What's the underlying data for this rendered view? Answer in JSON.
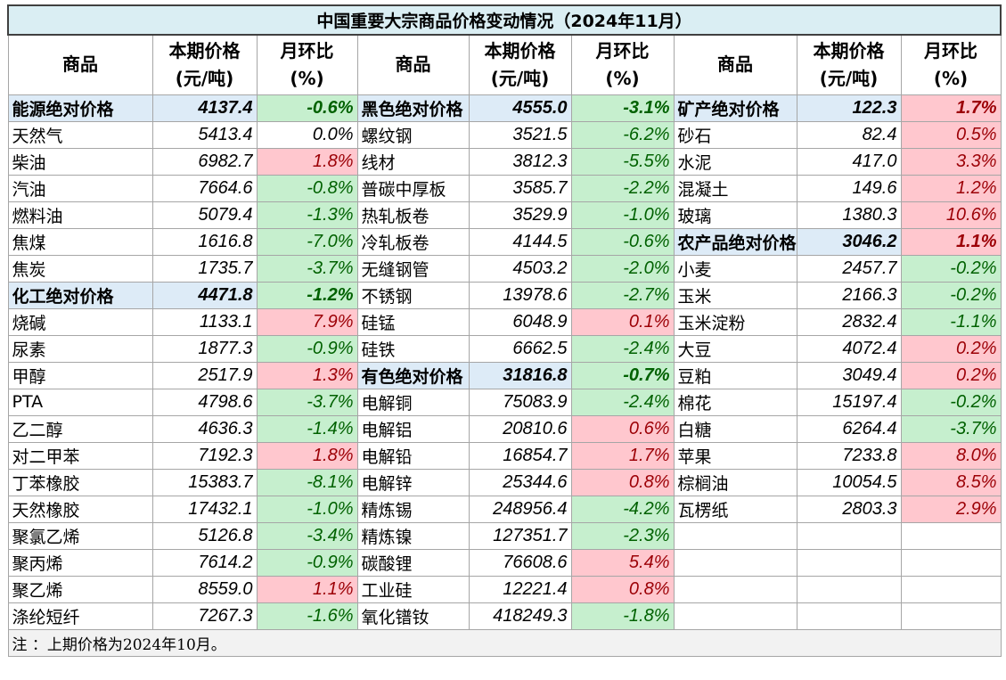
{
  "title": "中国重要大宗商品价格变动情况（2024年11月）",
  "table": {
    "header": [
      [
        "商品"
      ],
      [
        "本期价格",
        "(元/吨)"
      ],
      [
        "月环比",
        "(%)"
      ],
      [
        "商品"
      ],
      [
        "本期价格",
        "(元/吨)"
      ],
      [
        "月环比",
        "(%)"
      ],
      [
        "商品"
      ],
      [
        "本期价格",
        "(元/吨)"
      ],
      [
        "月环比",
        "(%)"
      ]
    ],
    "blocks": [
      [
        {
          "name": "能源绝对价格",
          "price": "4137.4",
          "change": "-0.6%",
          "group": true
        },
        {
          "name": "天然气",
          "price": "5413.4",
          "change": "0.0%"
        },
        {
          "name": "柴油",
          "price": "6982.7",
          "change": "1.8%"
        },
        {
          "name": "汽油",
          "price": "7664.6",
          "change": "-0.8%"
        },
        {
          "name": "燃料油",
          "price": "5079.4",
          "change": "-1.3%"
        },
        {
          "name": "焦煤",
          "price": "1616.8",
          "change": "-7.0%"
        },
        {
          "name": "焦炭",
          "price": "1735.7",
          "change": "-3.7%"
        },
        {
          "name": "化工绝对价格",
          "price": "4471.8",
          "change": "-1.2%",
          "group": true
        },
        {
          "name": "烧碱",
          "price": "1133.1",
          "change": "7.9%"
        },
        {
          "name": "尿素",
          "price": "1877.3",
          "change": "-0.9%"
        },
        {
          "name": "甲醇",
          "price": "2517.9",
          "change": "1.3%"
        },
        {
          "name": "PTA",
          "price": "4798.6",
          "change": "-3.7%"
        },
        {
          "name": "乙二醇",
          "price": "4636.3",
          "change": "-1.4%"
        },
        {
          "name": "对二甲苯",
          "price": "7192.3",
          "change": "1.8%"
        },
        {
          "name": "丁苯橡胶",
          "price": "15383.7",
          "change": "-8.1%"
        },
        {
          "name": "天然橡胶",
          "price": "17432.1",
          "change": "-1.0%"
        },
        {
          "name": "聚氯乙烯",
          "price": "5126.8",
          "change": "-3.4%"
        },
        {
          "name": "聚丙烯",
          "price": "7614.2",
          "change": "-0.9%"
        },
        {
          "name": "聚乙烯",
          "price": "8559.0",
          "change": "1.1%"
        },
        {
          "name": "涤纶短纤",
          "price": "7267.3",
          "change": "-1.6%"
        }
      ],
      [
        {
          "name": "黑色绝对价格",
          "price": "4555.0",
          "change": "-3.1%",
          "group": true
        },
        {
          "name": "螺纹钢",
          "price": "3521.5",
          "change": "-6.2%"
        },
        {
          "name": "线材",
          "price": "3812.3",
          "change": "-5.5%"
        },
        {
          "name": "普碳中厚板",
          "price": "3585.7",
          "change": "-2.2%"
        },
        {
          "name": "热轧板卷",
          "price": "3529.9",
          "change": "-1.0%"
        },
        {
          "name": "冷轧板卷",
          "price": "4144.5",
          "change": "-0.6%"
        },
        {
          "name": "无缝钢管",
          "price": "4503.2",
          "change": "-2.0%"
        },
        {
          "name": "不锈钢",
          "price": "13978.6",
          "change": "-2.7%"
        },
        {
          "name": "硅锰",
          "price": "6048.9",
          "change": "0.1%"
        },
        {
          "name": "硅铁",
          "price": "6662.5",
          "change": "-2.4%"
        },
        {
          "name": "有色绝对价格",
          "price": "31816.8",
          "change": "-0.7%",
          "group": true
        },
        {
          "name": "电解铜",
          "price": "75083.9",
          "change": "-2.4%"
        },
        {
          "name": "电解铝",
          "price": "20810.6",
          "change": "0.6%"
        },
        {
          "name": "电解铅",
          "price": "16854.7",
          "change": "1.7%"
        },
        {
          "name": "电解锌",
          "price": "25344.6",
          "change": "0.8%"
        },
        {
          "name": "精炼锡",
          "price": "248956.4",
          "change": "-4.2%"
        },
        {
          "name": "精炼镍",
          "price": "127351.7",
          "change": "-2.3%"
        },
        {
          "name": "碳酸锂",
          "price": "76608.6",
          "change": "5.4%"
        },
        {
          "name": "工业硅",
          "price": "12221.4",
          "change": "0.8%"
        },
        {
          "name": "氧化镨钕",
          "price": "418249.3",
          "change": "-1.8%"
        }
      ],
      [
        {
          "name": "矿产绝对价格",
          "price": "122.3",
          "change": "1.7%",
          "group": true
        },
        {
          "name": "砂石",
          "price": "82.4",
          "change": "0.5%"
        },
        {
          "name": "水泥",
          "price": "417.0",
          "change": "3.3%"
        },
        {
          "name": "混凝土",
          "price": "149.6",
          "change": "1.2%"
        },
        {
          "name": "玻璃",
          "price": "1380.3",
          "change": "10.6%"
        },
        {
          "name": "农产品绝对价格",
          "price": "3046.2",
          "change": "1.1%",
          "group": true
        },
        {
          "name": "小麦",
          "price": "2457.7",
          "change": "-0.2%"
        },
        {
          "name": "玉米",
          "price": "2166.3",
          "change": "-0.2%"
        },
        {
          "name": "玉米淀粉",
          "price": "2832.4",
          "change": "-1.1%"
        },
        {
          "name": "大豆",
          "price": "4072.4",
          "change": "0.2%"
        },
        {
          "name": "豆粕",
          "price": "3049.4",
          "change": "0.2%"
        },
        {
          "name": "棉花",
          "price": "15197.4",
          "change": "-0.2%"
        },
        {
          "name": "白糖",
          "price": "6264.4",
          "change": "-3.7%"
        },
        {
          "name": "苹果",
          "price": "7233.8",
          "change": "8.0%"
        },
        {
          "name": "棕榈油",
          "price": "10054.5",
          "change": "8.5%"
        },
        {
          "name": "瓦楞纸",
          "price": "2803.3",
          "change": "2.9%"
        }
      ]
    ],
    "footnote": "注 ：上期价格为2024年10月。"
  }
}
